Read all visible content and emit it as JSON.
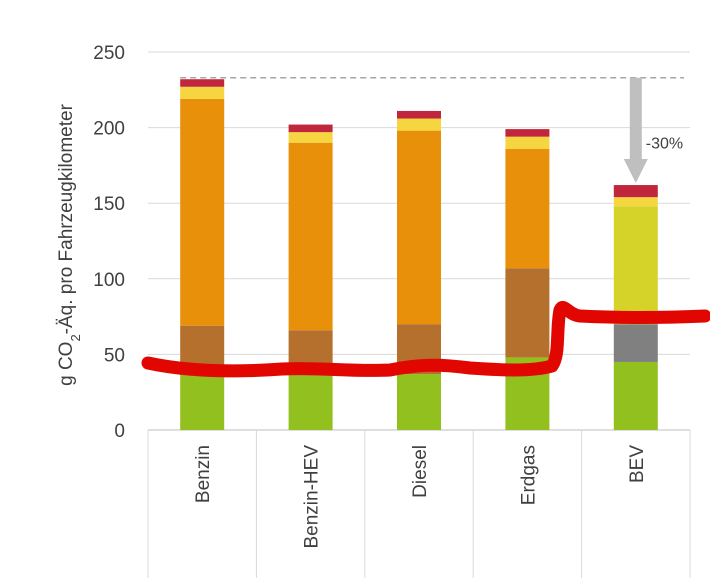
{
  "chart_data": {
    "type": "bar",
    "stacked": true,
    "title": "",
    "xlabel": "",
    "ylabel": "g CO₂-Äq. pro Fahrzeugkilometer",
    "ylabel_parts": {
      "pre": "g CO",
      "sub": "2",
      "post": "-Äq. pro Fahrzeugkilometer"
    },
    "ylim": [
      0,
      250
    ],
    "yticks": [
      0,
      50,
      100,
      150,
      200,
      250
    ],
    "categories": [
      "Benzin",
      "Benzin-HEV",
      "Diesel",
      "Erdgas",
      "BEV"
    ],
    "series": [
      {
        "name": "segment-1",
        "color": "#92c01f",
        "values": [
          37,
          37,
          37,
          48,
          45
        ]
      },
      {
        "name": "segment-2",
        "color": "#b4702c",
        "values": [
          32,
          29,
          33,
          59,
          0
        ]
      },
      {
        "name": "segment-2b",
        "color": "#808080",
        "values": [
          0,
          0,
          0,
          0,
          25
        ]
      },
      {
        "name": "segment-3",
        "color": "#e8900a",
        "values": [
          150,
          124,
          128,
          79,
          0
        ]
      },
      {
        "name": "segment-3b",
        "color": "#d5d22a",
        "values": [
          0,
          0,
          0,
          0,
          78
        ]
      },
      {
        "name": "segment-4",
        "color": "#f5d540",
        "values": [
          8,
          7,
          8,
          8,
          6
        ]
      },
      {
        "name": "segment-5",
        "color": "#c0273c",
        "values": [
          5,
          5,
          5,
          5,
          8
        ]
      }
    ],
    "reference_line": {
      "value": 233,
      "style": "dashed",
      "color": "#a6a6a6"
    },
    "annotation": {
      "text": "-30%",
      "from": 233,
      "to": 162,
      "category": "BEV"
    },
    "overlay_stroke": {
      "color": "#e10600"
    }
  }
}
